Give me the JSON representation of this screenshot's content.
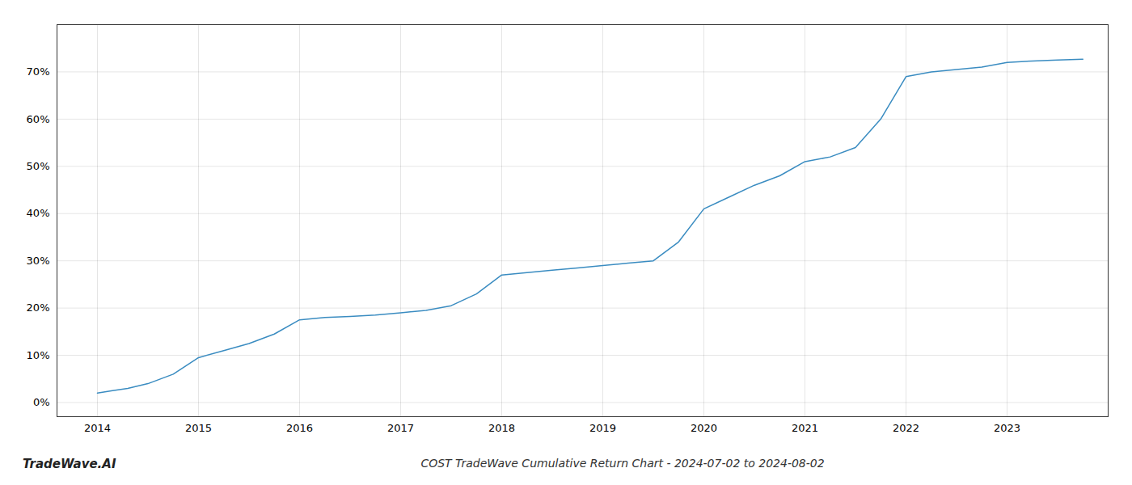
{
  "chart_data": {
    "type": "line",
    "title": "COST TradeWave Cumulative Return Chart - 2024-07-02 to 2024-08-02",
    "annotations": [
      "TradeWave.AI"
    ],
    "x": [
      2014.0,
      2014.15,
      2014.3,
      2014.5,
      2014.75,
      2015.0,
      2015.25,
      2015.5,
      2015.75,
      2016.0,
      2016.25,
      2016.5,
      2016.75,
      2017.0,
      2017.25,
      2017.5,
      2017.75,
      2018.0,
      2018.25,
      2018.5,
      2018.75,
      2019.0,
      2019.25,
      2019.5,
      2019.75,
      2020.0,
      2020.25,
      2020.5,
      2020.75,
      2021.0,
      2021.25,
      2021.5,
      2021.75,
      2022.0,
      2022.25,
      2022.5,
      2022.75,
      2023.0,
      2023.25,
      2023.5,
      2023.75
    ],
    "values": [
      2.0,
      2.5,
      3.0,
      4.0,
      6.0,
      9.5,
      11.0,
      12.5,
      14.5,
      17.5,
      18.0,
      18.2,
      18.5,
      19.0,
      19.5,
      20.5,
      23.0,
      27.0,
      27.5,
      28.0,
      28.5,
      29.0,
      29.5,
      30.0,
      34.0,
      41.0,
      43.5,
      46.0,
      48.0,
      51.0,
      52.0,
      54.0,
      60.0,
      69.0,
      70.0,
      70.5,
      71.0,
      72.0,
      72.3,
      72.5,
      72.7
    ],
    "color": "#3a8cc1",
    "xlim": [
      2013.6,
      2024.0
    ],
    "ylim": [
      -3,
      80
    ],
    "xticks": [
      2014,
      2015,
      2016,
      2017,
      2018,
      2019,
      2020,
      2021,
      2022,
      2023
    ],
    "yticks": [
      {
        "value": 0,
        "label": "0%"
      },
      {
        "value": 10,
        "label": "10%"
      },
      {
        "value": 20,
        "label": "20%"
      },
      {
        "value": 30,
        "label": "30%"
      },
      {
        "value": 40,
        "label": "40%"
      },
      {
        "value": 50,
        "label": "50%"
      },
      {
        "value": 60,
        "label": "60%"
      },
      {
        "value": 70,
        "label": "70%"
      }
    ],
    "grid": true
  }
}
